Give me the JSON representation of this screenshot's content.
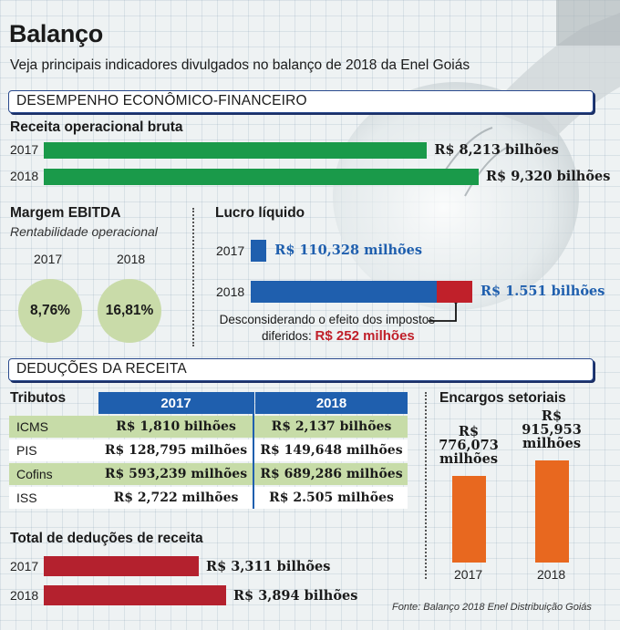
{
  "title": "Balanço",
  "subtitle": "Veja principais indicadores divulgados no balanço de 2018 da Enel Goiás",
  "sections": {
    "desempenho": "DESEMPENHO ECONÔMICO-FINANCEIRO",
    "deducoes": "DEDUÇÕES DA RECEITA"
  },
  "colors": {
    "green": "#1a9a4a",
    "blue": "#1f5fae",
    "red": "#c0202a",
    "crimson": "#b4212e",
    "orange": "#e8681f",
    "circle": "#c9dba9"
  },
  "receita": {
    "heading": "Receita operacional bruta",
    "rows": [
      {
        "year": "2017",
        "value": 8.213,
        "label": "R$ 8,213 bilhões"
      },
      {
        "year": "2018",
        "value": 9.32,
        "label": "R$ 9,320 bilhões"
      }
    ]
  },
  "margem": {
    "heading": "Margem EBITDA",
    "subheading": "Rentabilidade operacional",
    "items": [
      {
        "year": "2017",
        "label": "8,76%"
      },
      {
        "year": "2018",
        "label": "16,81%"
      }
    ]
  },
  "lucro": {
    "heading": "Lucro líquido",
    "rows": [
      {
        "year": "2017",
        "value": 110.328,
        "label": "R$ 110,328 milhões"
      },
      {
        "year": "2018",
        "value": 1551,
        "label": "R$ 1.551 bilhões"
      }
    ],
    "deferred_value": 252,
    "note_line1": "Desconsiderando o efeito dos impostos",
    "note_line2": "diferidos:",
    "note_value": "R$ 252 milhões"
  },
  "tributos": {
    "heading": "Tributos",
    "columns": [
      "2017",
      "2018"
    ],
    "rows": [
      {
        "name": "ICMS",
        "v2017": "R$ 1,810 bilhões",
        "v2018": "R$ 2,137 bilhões"
      },
      {
        "name": "PIS",
        "v2017": "R$ 128,795 milhões",
        "v2018": "R$ 149,648 milhões"
      },
      {
        "name": "Cofins",
        "v2017": "R$ 593,239 milhões",
        "v2018": "R$ 689,286 milhões"
      },
      {
        "name": "ISS",
        "v2017": "R$ 2,722 milhões",
        "v2018": "R$ 2.505 milhões"
      }
    ]
  },
  "total": {
    "heading": "Total de deduções de receita",
    "rows": [
      {
        "year": "2017",
        "value": 3.311,
        "label": "R$ 3,311 bilhões"
      },
      {
        "year": "2018",
        "value": 3.894,
        "label": "R$ 3,894 bilhões"
      }
    ]
  },
  "encargos": {
    "heading": "Encargos setoriais",
    "bars": [
      {
        "year": "2017",
        "value": 776.073,
        "label_line1": "R$",
        "label_line2": "776,073",
        "label_line3": "milhões"
      },
      {
        "year": "2018",
        "value": 915.953,
        "label_line1": "R$",
        "label_line2": "915,953",
        "label_line3": "milhões"
      }
    ]
  },
  "source": "Fonte: Balanço 2018 Enel Distribuição Goiás",
  "chart_data": [
    {
      "type": "bar",
      "title": "Receita operacional bruta",
      "categories": [
        "2017",
        "2018"
      ],
      "values": [
        8.213,
        9.32
      ],
      "unit": "R$ bilhões"
    },
    {
      "type": "table",
      "title": "Margem EBITDA",
      "categories": [
        "2017",
        "2018"
      ],
      "values": [
        8.76,
        16.81
      ],
      "unit": "%"
    },
    {
      "type": "bar",
      "title": "Lucro líquido",
      "categories": [
        "2017",
        "2018"
      ],
      "values": [
        110.328,
        1551
      ],
      "unit": "R$ milhões"
    },
    {
      "type": "table",
      "title": "Tributos",
      "columns": [
        "2017",
        "2018"
      ],
      "rows": [
        [
          "ICMS",
          "R$ 1,810 bilhões",
          "R$ 2,137 bilhões"
        ],
        [
          "PIS",
          "R$ 128,795 milhões",
          "R$ 149,648 milhões"
        ],
        [
          "Cofins",
          "R$ 593,239 milhões",
          "R$ 689,286 milhões"
        ],
        [
          "ISS",
          "R$ 2,722 milhões",
          "R$ 2.505 milhões"
        ]
      ]
    },
    {
      "type": "bar",
      "title": "Total de deduções de receita",
      "categories": [
        "2017",
        "2018"
      ],
      "values": [
        3.311,
        3.894
      ],
      "unit": "R$ bilhões"
    },
    {
      "type": "bar",
      "title": "Encargos setoriais",
      "categories": [
        "2017",
        "2018"
      ],
      "values": [
        776.073,
        915.953
      ],
      "unit": "R$ milhões"
    }
  ]
}
